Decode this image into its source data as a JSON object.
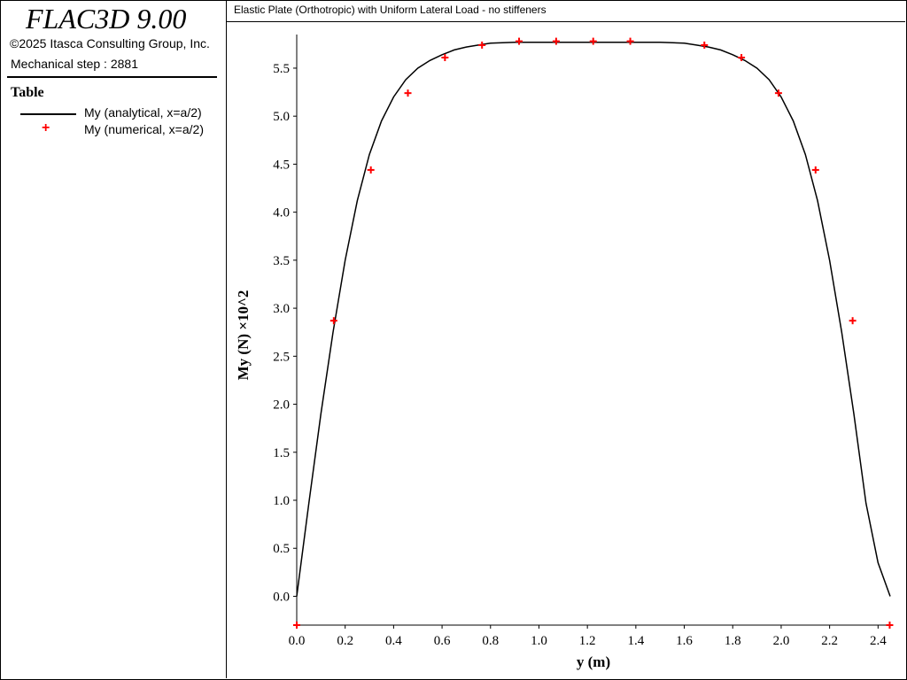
{
  "app": {
    "name": "FLAC3D 9.00",
    "copyright": "©2025 Itasca Consulting Group, Inc.",
    "step": "Mechanical step : 2881"
  },
  "legend": {
    "heading": "Table",
    "analytical_label": "My (analytical, x=a/2)",
    "numerical_label": "My (numerical, x=a/2)"
  },
  "chart_data": {
    "type": "line",
    "title": "Elastic Plate (Orthotropic) with Uniform Lateral Load - no stiffeners",
    "xlabel": "y (m)",
    "ylabel": "My (N) ×10^2",
    "xlim": [
      0,
      2.45
    ],
    "ylim": [
      -0.3,
      5.85
    ],
    "xticks": [
      "0.0",
      "0.2",
      "0.4",
      "0.6",
      "0.8",
      "1.0",
      "1.2",
      "1.4",
      "1.6",
      "1.8",
      "2.0",
      "2.2",
      "2.4"
    ],
    "yticks": [
      "0.0",
      "0.5",
      "1.0",
      "1.5",
      "2.0",
      "2.5",
      "3.0",
      "3.5",
      "4.0",
      "4.5",
      "5.0",
      "5.5"
    ],
    "grid": false,
    "colors": {
      "analytical": "#000000",
      "numerical": "#ff0000"
    },
    "series": [
      {
        "name": "My (analytical, x=a/2)",
        "style": "line",
        "x": [
          0.0,
          0.05,
          0.1,
          0.15,
          0.2,
          0.25,
          0.3,
          0.35,
          0.4,
          0.45,
          0.5,
          0.55,
          0.6,
          0.65,
          0.7,
          0.75,
          0.8,
          0.9,
          1.0,
          1.1,
          1.2,
          1.3,
          1.4,
          1.5,
          1.6,
          1.65,
          1.7,
          1.75,
          1.8,
          1.85,
          1.9,
          1.95,
          2.0,
          2.05,
          2.1,
          2.15,
          2.2,
          2.25,
          2.3,
          2.35,
          2.4,
          2.45
        ],
        "y": [
          0.0,
          0.97,
          1.9,
          2.75,
          3.5,
          4.12,
          4.6,
          4.95,
          5.2,
          5.38,
          5.5,
          5.58,
          5.64,
          5.69,
          5.72,
          5.74,
          5.76,
          5.77,
          5.77,
          5.77,
          5.77,
          5.77,
          5.77,
          5.77,
          5.76,
          5.74,
          5.72,
          5.69,
          5.64,
          5.58,
          5.5,
          5.38,
          5.2,
          4.95,
          4.6,
          4.12,
          3.5,
          2.75,
          1.9,
          0.97,
          0.35,
          0.0
        ]
      },
      {
        "name": "My (numerical, x=a/2)",
        "style": "marker",
        "x": [
          0.0,
          0.153,
          0.306,
          0.459,
          0.612,
          0.765,
          0.918,
          1.071,
          1.224,
          1.377,
          1.683,
          1.836,
          1.989,
          2.142,
          2.295,
          2.448
        ],
        "y": [
          -0.3,
          2.87,
          4.44,
          5.24,
          5.61,
          5.74,
          5.78,
          5.78,
          5.78,
          5.78,
          5.74,
          5.61,
          5.24,
          4.44,
          2.87,
          -0.3
        ]
      }
    ]
  }
}
